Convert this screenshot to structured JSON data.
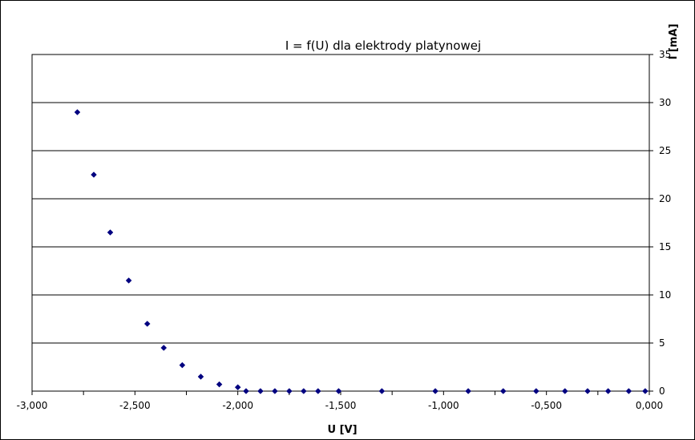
{
  "chart_data": {
    "type": "scatter",
    "title": "I = f(U) dla elektrody platynowej",
    "xlabel": "U [V]",
    "ylabel": "I [mA]",
    "xlim": [
      -3.0,
      0.0
    ],
    "ylim": [
      0,
      35
    ],
    "x_ticks": [
      "-3,000",
      "-2,500",
      "-2,000",
      "-1,500",
      "-1,000",
      "-0,500",
      "0,000"
    ],
    "x_tick_values": [
      -3.0,
      -2.5,
      -2.0,
      -1.5,
      -1.0,
      -0.5,
      0.0
    ],
    "y_ticks": [
      "0",
      "5",
      "10",
      "15",
      "20",
      "25",
      "30",
      "35"
    ],
    "y_tick_values": [
      0,
      5,
      10,
      15,
      20,
      25,
      30,
      35
    ],
    "grid": "horizontal",
    "legend": "none",
    "marker_color": "#000080",
    "points": [
      {
        "x": -2.78,
        "y": 29.0
      },
      {
        "x": -2.7,
        "y": 22.5
      },
      {
        "x": -2.62,
        "y": 16.5
      },
      {
        "x": -2.53,
        "y": 11.5
      },
      {
        "x": -2.44,
        "y": 7.0
      },
      {
        "x": -2.36,
        "y": 4.5
      },
      {
        "x": -2.27,
        "y": 2.7
      },
      {
        "x": -2.18,
        "y": 1.5
      },
      {
        "x": -2.09,
        "y": 0.7
      },
      {
        "x": -2.0,
        "y": 0.4
      },
      {
        "x": -1.96,
        "y": 0.0
      },
      {
        "x": -1.89,
        "y": 0.0
      },
      {
        "x": -1.82,
        "y": 0.0
      },
      {
        "x": -1.75,
        "y": 0.0
      },
      {
        "x": -1.68,
        "y": 0.0
      },
      {
        "x": -1.61,
        "y": 0.0
      },
      {
        "x": -1.51,
        "y": 0.0
      },
      {
        "x": -1.3,
        "y": 0.0
      },
      {
        "x": -1.04,
        "y": 0.0
      },
      {
        "x": -0.88,
        "y": 0.0
      },
      {
        "x": -0.71,
        "y": 0.0
      },
      {
        "x": -0.55,
        "y": 0.0
      },
      {
        "x": -0.41,
        "y": 0.0
      },
      {
        "x": -0.3,
        "y": 0.0
      },
      {
        "x": -0.2,
        "y": 0.0
      },
      {
        "x": -0.1,
        "y": 0.0
      },
      {
        "x": -0.02,
        "y": 0.0
      }
    ]
  }
}
